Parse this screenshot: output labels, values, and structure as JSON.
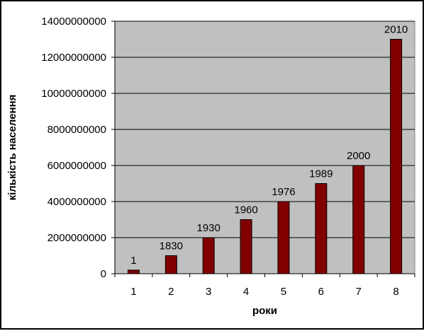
{
  "chart_data": {
    "type": "bar",
    "title": "",
    "xlabel": "роки",
    "ylabel": "кількість населення",
    "categories": [
      "1",
      "2",
      "3",
      "4",
      "5",
      "6",
      "7",
      "8"
    ],
    "values": [
      200000000,
      1000000000,
      2000000000,
      3000000000,
      4000000000,
      5000000000,
      6000000000,
      13000000000
    ],
    "data_labels": [
      "1",
      "1830",
      "1930",
      "1960",
      "1976",
      "1989",
      "2000",
      "2010"
    ],
    "ylim": [
      0,
      14000000000
    ],
    "yticks": [
      0,
      2000000000,
      4000000000,
      6000000000,
      8000000000,
      10000000000,
      12000000000,
      14000000000
    ],
    "ytick_labels": [
      "0",
      "2000000000",
      "4000000000",
      "6000000000",
      "8000000000",
      "10000000000",
      "12000000000",
      "14000000000"
    ],
    "grid": true,
    "legend": "none",
    "colors": {
      "bar": "#800000",
      "plot_background": "#c0c0c0",
      "gridline": "#000000"
    }
  }
}
